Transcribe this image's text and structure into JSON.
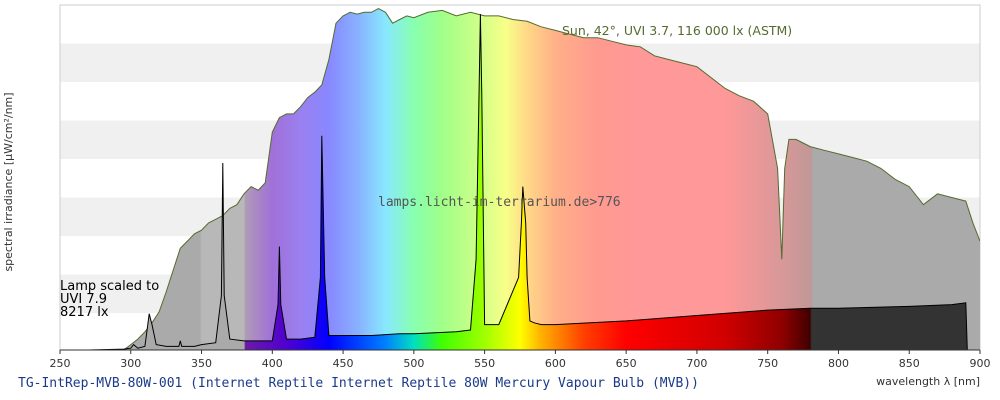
{
  "chart_data": {
    "type": "area",
    "title": "",
    "xlabel": "wavelength λ [nm]",
    "ylabel": "spectral irradiance [µW/cm²/nm]",
    "xlim": [
      250,
      900
    ],
    "x_ticks": [
      250,
      300,
      350,
      400,
      450,
      500,
      550,
      600,
      650,
      700,
      750,
      800,
      850,
      900
    ],
    "grid": "horizontal bands",
    "annotations": {
      "sun": "Sun, 42°, UVI 3.7, 116 000 lx (ASTM)",
      "lamp_line1": "Lamp scaled to",
      "lamp_line2": "UVI 7.9",
      "lamp_line3": "8217 lx",
      "watermark": "lamps.licht-im-terrarium.de>776"
    },
    "series": [
      {
        "name": "Sun, 42°, UVI 3.7, 116 000 lx (ASTM)",
        "x": [
          295,
          300,
          305,
          310,
          315,
          320,
          325,
          330,
          335,
          340,
          345,
          350,
          355,
          360,
          365,
          370,
          375,
          380,
          385,
          390,
          395,
          400,
          405,
          410,
          415,
          420,
          425,
          430,
          435,
          440,
          445,
          450,
          455,
          460,
          465,
          470,
          475,
          480,
          485,
          490,
          495,
          500,
          510,
          520,
          530,
          540,
          550,
          560,
          570,
          580,
          590,
          600,
          610,
          620,
          630,
          640,
          650,
          660,
          670,
          680,
          690,
          700,
          710,
          720,
          730,
          740,
          750,
          757,
          760,
          762,
          765,
          770,
          775,
          780,
          790,
          800,
          810,
          820,
          830,
          840,
          850,
          860,
          870,
          880,
          890,
          895,
          900
        ],
        "values": [
          0,
          3,
          6,
          10,
          15,
          21,
          32,
          44,
          56,
          60,
          64,
          66,
          70,
          72,
          74,
          78,
          80,
          86,
          90,
          88,
          92,
          120,
          128,
          130,
          130,
          134,
          139,
          142,
          146,
          160,
          180,
          184,
          186,
          185,
          186,
          186,
          188,
          186,
          180,
          182,
          184,
          183,
          186,
          187,
          184,
          186,
          184,
          184,
          182,
          181,
          178,
          176,
          174,
          172,
          172,
          170,
          168,
          167,
          162,
          160,
          158,
          156,
          150,
          144,
          140,
          137,
          130,
          100,
          50,
          100,
          116,
          116,
          114,
          112,
          110,
          108,
          106,
          104,
          100,
          94,
          90,
          80,
          86,
          84,
          82,
          70,
          60
        ]
      },
      {
        "name": "TG-IntRep-MVB-80W-001 (Internet Reptile Internet Reptile 80W Mercury Vapour Bulb (MVB))",
        "x": [
          270,
          295,
          300,
          302,
          305,
          310,
          312,
          313,
          315,
          318,
          325,
          334,
          335,
          336,
          345,
          350,
          360,
          364,
          365,
          366,
          370,
          380,
          400,
          404,
          405,
          406,
          410,
          420,
          430,
          434,
          435,
          437,
          440,
          450,
          470,
          490,
          500,
          530,
          540,
          544,
          546,
          547,
          548,
          550,
          560,
          574,
          576,
          577,
          579,
          580,
          582,
          585,
          590,
          600,
          650,
          700,
          750,
          780,
          800,
          850,
          880,
          890,
          891
        ],
        "values": [
          0,
          0.5,
          1,
          3,
          1,
          2,
          14,
          20,
          14,
          3,
          2,
          2,
          5,
          2,
          2,
          3,
          4,
          30,
          103,
          30,
          6,
          5,
          5,
          25,
          57,
          25,
          6,
          6,
          7,
          40,
          118,
          40,
          8,
          8,
          8,
          9,
          9,
          10,
          11,
          50,
          140,
          185,
          140,
          14,
          14,
          40,
          70,
          90,
          70,
          40,
          16,
          15,
          14,
          14,
          16,
          19,
          22,
          23,
          23,
          24,
          25,
          26,
          0
        ]
      }
    ]
  },
  "footer": {
    "title": "TG-IntRep-MVB-80W-001 (Internet Reptile Internet Reptile 80W Mercury Vapour Bulb (MVB))"
  },
  "colors": {
    "sun_outline": "#556b2f",
    "lamp_outline": "#000000",
    "band_light": "#f0f0f0",
    "band_white": "#ffffff",
    "uv_fill": "#aaaaaa",
    "ir_fill": "#aaaaaa",
    "lamp_ir_fill": "#333333"
  }
}
